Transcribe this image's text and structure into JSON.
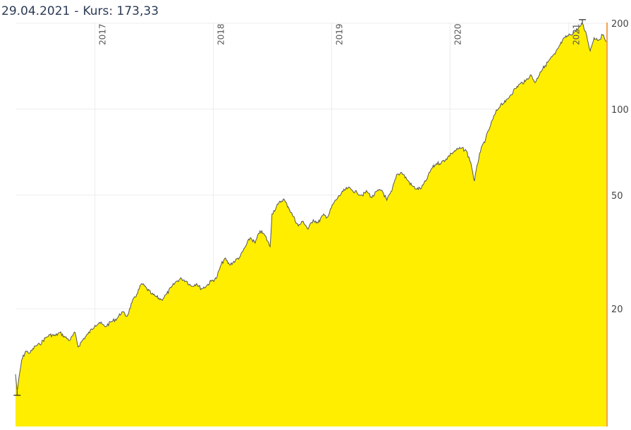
{
  "header": {
    "date": "29.04.2021",
    "separator": "-",
    "price_label": "Kurs:",
    "price_value": "173,33"
  },
  "chart_data": {
    "type": "area",
    "y_scale": "log",
    "ylim": [
      10,
      200
    ],
    "y_ticks": [
      {
        "value": 200,
        "label": "200"
      },
      {
        "value": 100,
        "label": "100"
      },
      {
        "value": 50,
        "label": "50"
      },
      {
        "value": 20,
        "label": "20"
      }
    ],
    "x_range": [
      "2016-05-01",
      "2021-04-29"
    ],
    "year_labels": [
      {
        "date": "2017-01-01",
        "label": "2017"
      },
      {
        "date": "2018-01-01",
        "label": "2018"
      },
      {
        "date": "2019-01-01",
        "label": "2019"
      },
      {
        "date": "2020-01-01",
        "label": "2020"
      },
      {
        "date": "2021-01-01",
        "label": "2021"
      }
    ],
    "fill_color": "#ffee00",
    "line_color": "#555555",
    "highlight_color": "#f5a050",
    "grid": true,
    "min_marker": {
      "date": "2016-05-06",
      "value": 10.3
    },
    "max_marker": {
      "date": "2021-02-12",
      "value": 199
    },
    "series": [
      {
        "points": [
          [
            "2016-05-01",
            11.8
          ],
          [
            "2016-05-06",
            10.3
          ],
          [
            "2016-05-20",
            13.2
          ],
          [
            "2016-06-01",
            14.2
          ],
          [
            "2016-06-15",
            14.0
          ],
          [
            "2016-07-01",
            14.8
          ],
          [
            "2016-07-15",
            15.0
          ],
          [
            "2016-08-01",
            15.8
          ],
          [
            "2016-08-15",
            16.2
          ],
          [
            "2016-09-01",
            16.1
          ],
          [
            "2016-09-15",
            16.5
          ],
          [
            "2016-10-01",
            15.9
          ],
          [
            "2016-10-15",
            15.5
          ],
          [
            "2016-11-01",
            16.5
          ],
          [
            "2016-11-10",
            14.7
          ],
          [
            "2016-11-25",
            15.6
          ],
          [
            "2016-12-10",
            16.3
          ],
          [
            "2017-01-01",
            17.5
          ],
          [
            "2017-01-15",
            17.9
          ],
          [
            "2017-02-01",
            17.3
          ],
          [
            "2017-02-20",
            18.0
          ],
          [
            "2017-03-10",
            18.5
          ],
          [
            "2017-03-25",
            19.5
          ],
          [
            "2017-04-10",
            18.8
          ],
          [
            "2017-04-25",
            21.0
          ],
          [
            "2017-05-10",
            22.5
          ],
          [
            "2017-05-25",
            24.5
          ],
          [
            "2017-06-10",
            23.5
          ],
          [
            "2017-06-25",
            22.5
          ],
          [
            "2017-07-10",
            22.0
          ],
          [
            "2017-07-25",
            21.5
          ],
          [
            "2017-08-10",
            22.5
          ],
          [
            "2017-08-25",
            23.8
          ],
          [
            "2017-09-10",
            25.0
          ],
          [
            "2017-09-25",
            25.5
          ],
          [
            "2017-10-10",
            25.0
          ],
          [
            "2017-10-25",
            24.0
          ],
          [
            "2017-11-10",
            24.5
          ],
          [
            "2017-11-25",
            23.5
          ],
          [
            "2017-12-10",
            24.0
          ],
          [
            "2017-12-25",
            25.0
          ],
          [
            "2018-01-10",
            25.5
          ],
          [
            "2018-01-25",
            28.5
          ],
          [
            "2018-02-05",
            30.0
          ],
          [
            "2018-02-20",
            28.5
          ],
          [
            "2018-03-10",
            29.5
          ],
          [
            "2018-03-25",
            30.5
          ],
          [
            "2018-04-10",
            33.0
          ],
          [
            "2018-04-25",
            35.5
          ],
          [
            "2018-05-10",
            34.0
          ],
          [
            "2018-05-25",
            37.5
          ],
          [
            "2018-06-10",
            36.0
          ],
          [
            "2018-06-25",
            33.0
          ],
          [
            "2018-07-01",
            43.0
          ],
          [
            "2018-07-20",
            46.5
          ],
          [
            "2018-08-05",
            48.5
          ],
          [
            "2018-08-20",
            45.5
          ],
          [
            "2018-09-05",
            42.0
          ],
          [
            "2018-09-20",
            39.0
          ],
          [
            "2018-10-05",
            40.5
          ],
          [
            "2018-10-20",
            38.0
          ],
          [
            "2018-11-05",
            41.0
          ],
          [
            "2018-11-20",
            40.0
          ],
          [
            "2018-12-05",
            42.5
          ],
          [
            "2018-12-20",
            42.0
          ],
          [
            "2019-01-05",
            46.5
          ],
          [
            "2019-01-20",
            49.0
          ],
          [
            "2019-02-05",
            51.5
          ],
          [
            "2019-02-20",
            53.0
          ],
          [
            "2019-03-05",
            52.0
          ],
          [
            "2019-03-20",
            51.0
          ],
          [
            "2019-04-05",
            50.0
          ],
          [
            "2019-04-20",
            51.5
          ],
          [
            "2019-05-05",
            49.0
          ],
          [
            "2019-05-20",
            51.5
          ],
          [
            "2019-06-05",
            52.0
          ],
          [
            "2019-06-20",
            48.0
          ],
          [
            "2019-07-05",
            51.5
          ],
          [
            "2019-07-20",
            59.0
          ],
          [
            "2019-08-05",
            60.0
          ],
          [
            "2019-08-20",
            57.0
          ],
          [
            "2019-09-05",
            54.0
          ],
          [
            "2019-09-20",
            52.5
          ],
          [
            "2019-10-05",
            53.0
          ],
          [
            "2019-10-20",
            56.5
          ],
          [
            "2019-11-05",
            62.0
          ],
          [
            "2019-11-20",
            64.5
          ],
          [
            "2019-12-05",
            65.0
          ],
          [
            "2019-12-20",
            67.0
          ],
          [
            "2020-01-05",
            70.0
          ],
          [
            "2020-01-20",
            72.0
          ],
          [
            "2020-02-05",
            73.0
          ],
          [
            "2020-02-20",
            71.5
          ],
          [
            "2020-03-05",
            65.0
          ],
          [
            "2020-03-16",
            56.0
          ],
          [
            "2020-04-01",
            70.0
          ],
          [
            "2020-04-20",
            79.0
          ],
          [
            "2020-05-05",
            88.0
          ],
          [
            "2020-05-20",
            97.0
          ],
          [
            "2020-06-05",
            104.0
          ],
          [
            "2020-06-20",
            106.0
          ],
          [
            "2020-07-05",
            112.0
          ],
          [
            "2020-07-20",
            118.0
          ],
          [
            "2020-08-05",
            123.0
          ],
          [
            "2020-08-20",
            125.0
          ],
          [
            "2020-09-05",
            132.0
          ],
          [
            "2020-09-20",
            124.0
          ],
          [
            "2020-10-05",
            135.0
          ],
          [
            "2020-10-20",
            142.0
          ],
          [
            "2020-11-05",
            150.0
          ],
          [
            "2020-11-20",
            156.0
          ],
          [
            "2020-12-05",
            168.0
          ],
          [
            "2020-12-20",
            178.0
          ],
          [
            "2021-01-05",
            182.0
          ],
          [
            "2021-01-20",
            187.0
          ],
          [
            "2021-02-05",
            195.0
          ],
          [
            "2021-02-12",
            199.0
          ],
          [
            "2021-02-25",
            182.0
          ],
          [
            "2021-03-08",
            160.0
          ],
          [
            "2021-03-20",
            178.0
          ],
          [
            "2021-04-05",
            175.0
          ],
          [
            "2021-04-15",
            182.0
          ],
          [
            "2021-04-29",
            173.33
          ]
        ]
      }
    ]
  }
}
